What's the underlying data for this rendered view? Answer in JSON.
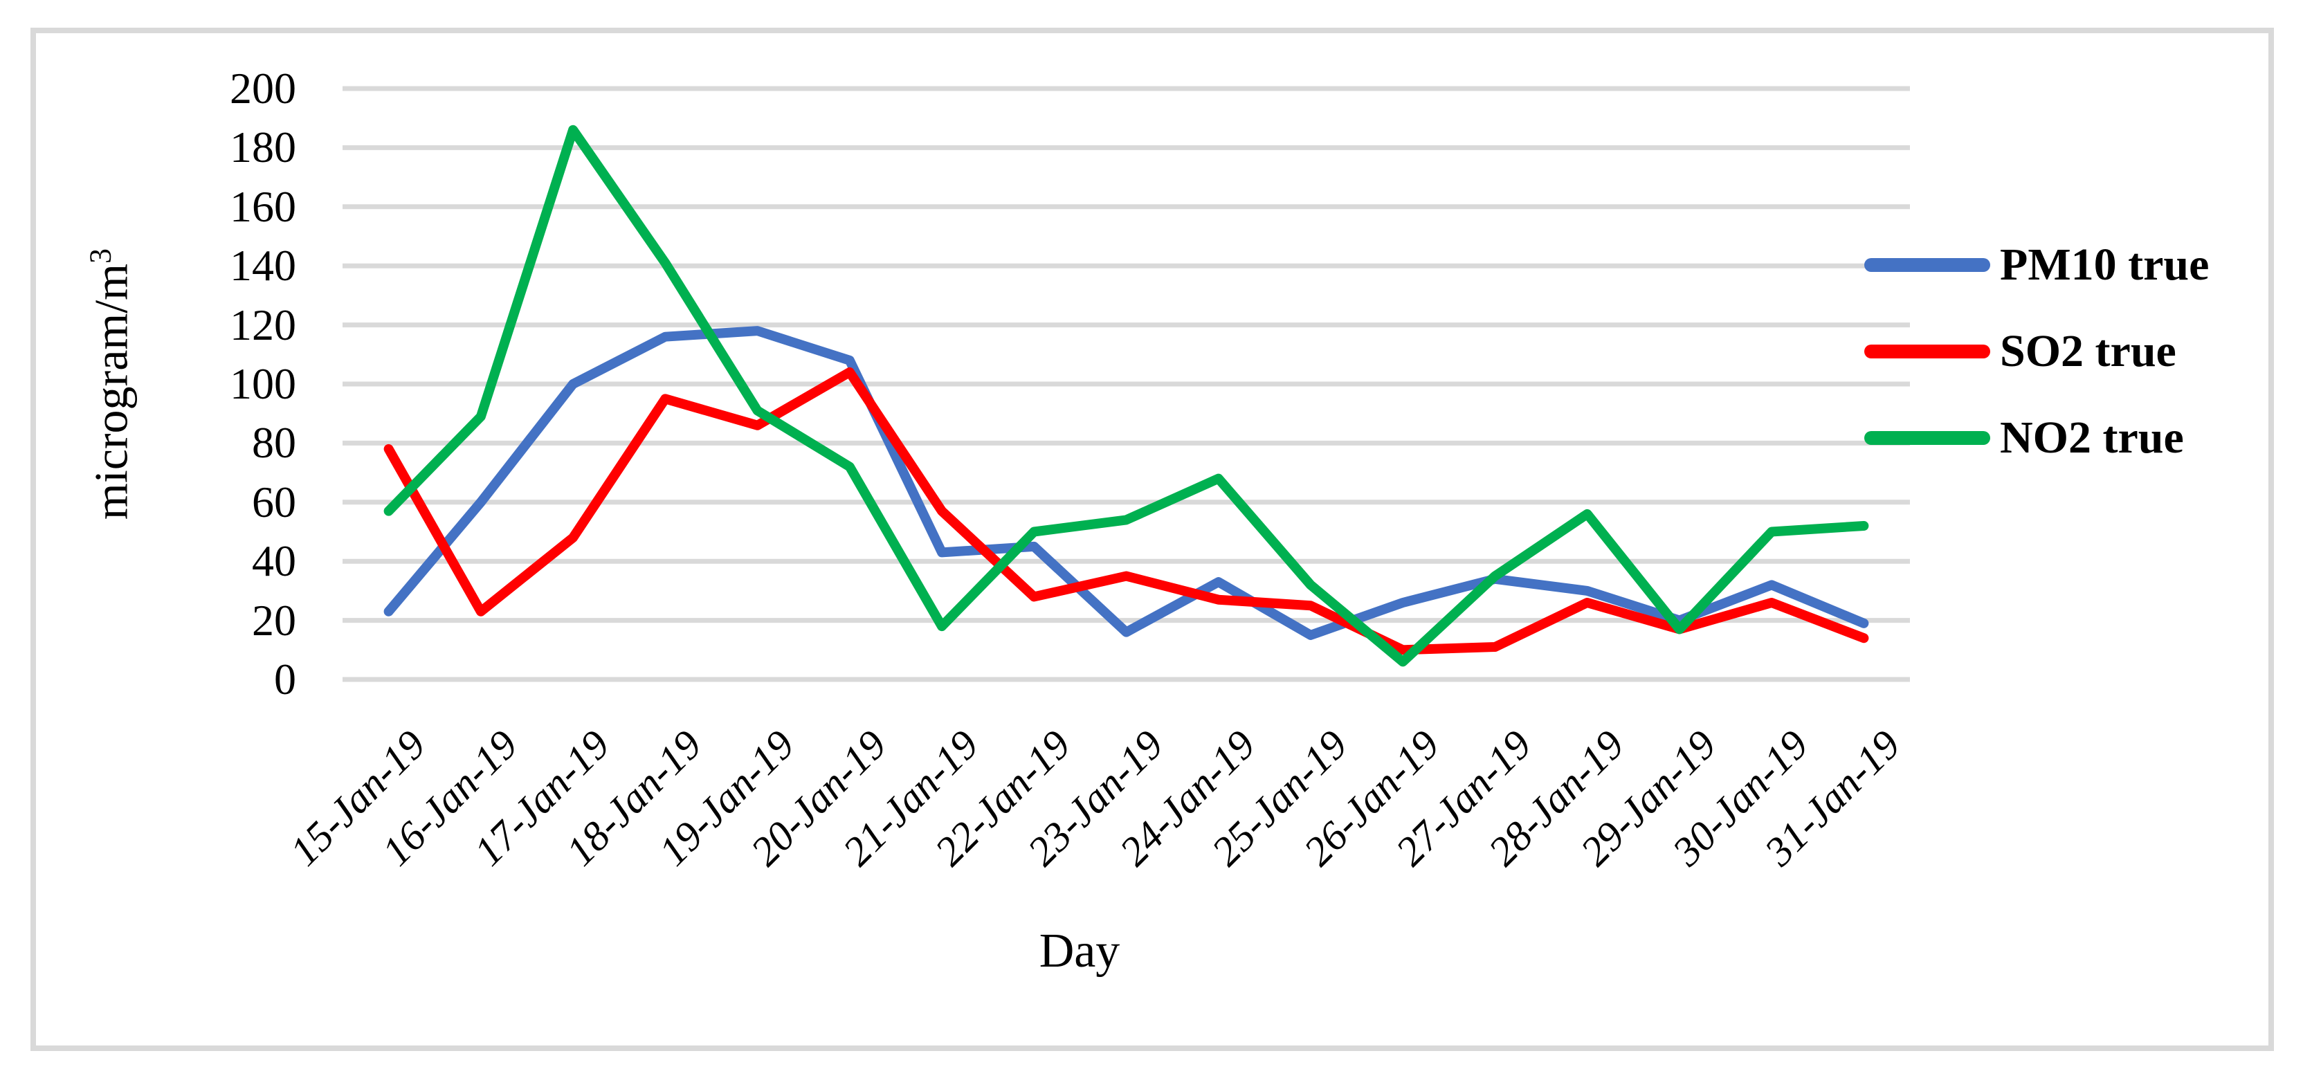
{
  "figure": {
    "y_axis_title_base": "microgram/m",
    "y_axis_title_sup": "3",
    "x_axis_title": "Day",
    "background": "#ffffff",
    "frame_color": "#D9D9D9",
    "gridline_color": "#D9D9D9",
    "legend": [
      {
        "label": "PM10 true",
        "color": "#4472C4"
      },
      {
        "label": "SO2 true",
        "color": "#FF0000"
      },
      {
        "label": "NO2 true",
        "color": "#00B050"
      }
    ]
  },
  "chart_data": {
    "type": "line",
    "title": "",
    "xlabel": "Day",
    "ylabel": "microgram/m³",
    "ylim": [
      0,
      200
    ],
    "ytick_step": 20,
    "grid": true,
    "legend_position": "right",
    "categories": [
      "15-Jan-19",
      "16-Jan-19",
      "17-Jan-19",
      "18-Jan-19",
      "19-Jan-19",
      "20-Jan-19",
      "21-Jan-19",
      "22-Jan-19",
      "23-Jan-19",
      "24-Jan-19",
      "25-Jan-19",
      "26-Jan-19",
      "27-Jan-19",
      "28-Jan-19",
      "29-Jan-19",
      "30-Jan-19",
      "31-Jan-19"
    ],
    "series": [
      {
        "name": "PM10 true",
        "color": "#4472C4",
        "values": [
          23,
          60,
          100,
          116,
          118,
          108,
          43,
          45,
          16,
          33,
          15,
          26,
          34,
          30,
          20,
          32,
          19
        ]
      },
      {
        "name": "SO2 true",
        "color": "#FF0000",
        "values": [
          78,
          23,
          48,
          95,
          86,
          104,
          57,
          28,
          35,
          27,
          25,
          10,
          11,
          26,
          17,
          26,
          14
        ]
      },
      {
        "name": "NO2 true",
        "color": "#00B050",
        "values": [
          57,
          89,
          186,
          141,
          91,
          72,
          18,
          50,
          54,
          68,
          32,
          6,
          35,
          56,
          17,
          50,
          52
        ]
      }
    ]
  }
}
